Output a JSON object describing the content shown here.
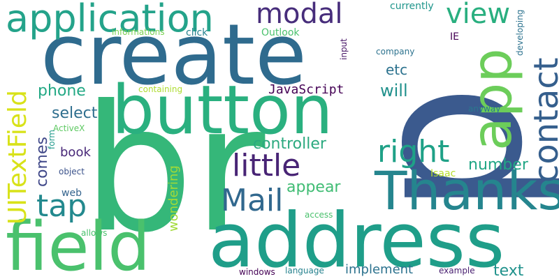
{
  "words": {
    "p": "p",
    "br": "br",
    "create": "create",
    "address": "address",
    "button": "button",
    "field": "field",
    "Thanks": "Thanks",
    "application": "application",
    "app": "app",
    "contact": "contact",
    "UITextField": "UITextField",
    "right": "right",
    "little": "little",
    "Mail": "Mail",
    "tap": "tap",
    "modal": "modal",
    "view": "view",
    "JavaScript": "JavaScript",
    "will": "will",
    "etc": "etc",
    "select": "select",
    "phone": "phone",
    "controller": "controller",
    "number": "number",
    "appear": "appear",
    "comes": "comes",
    "book": "book",
    "wondering": "wondering",
    "implement": "implement",
    "text": "text",
    "currently": "currently",
    "informations": "informations",
    "click": "click",
    "Outlook": "Outlook",
    "input": "input",
    "company": "company",
    "IE": "IE",
    "developing": "developing",
    "containing": "containing",
    "ActiveX": "ActiveX",
    "form": "form",
    "object": "object",
    "web": "web",
    "Isaac": "Isaac",
    "anyway": "anyway",
    "access": "access",
    "allows": "allows",
    "windows": "windows",
    "language": "language",
    "example": "example"
  }
}
